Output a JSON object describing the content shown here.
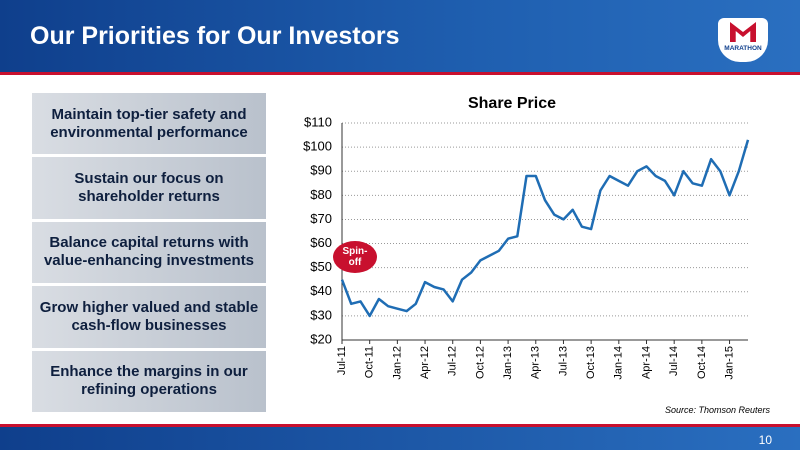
{
  "header": {
    "title": "Our Priorities for Our Investors",
    "logo": "MARATHON"
  },
  "priorities": [
    "Maintain top-tier safety and environmental performance",
    "Sustain our focus on shareholder returns",
    "Balance capital returns with value-enhancing investments",
    "Grow higher valued and stable cash-flow businesses",
    "Enhance the margins in our refining operations"
  ],
  "chart_data": {
    "type": "line",
    "title": "Share Price",
    "categories": [
      "Jul-11",
      null,
      null,
      "Oct-11",
      null,
      null,
      "Jan-12",
      null,
      null,
      "Apr-12",
      null,
      null,
      "Jul-12",
      null,
      null,
      "Oct-12",
      null,
      null,
      "Jan-13",
      null,
      null,
      "Apr-13",
      null,
      null,
      "Jul-13",
      null,
      null,
      "Oct-13",
      null,
      null,
      "Jan-14",
      null,
      null,
      "Apr-14",
      null,
      null,
      "Jul-14",
      null,
      null,
      "Oct-14",
      null,
      null,
      "Jan-15",
      null,
      null
    ],
    "series": [
      {
        "name": "Share Price",
        "color": "#1f6db4",
        "values": [
          45,
          35,
          36,
          30,
          37,
          34,
          33,
          32,
          35,
          44,
          42,
          41,
          36,
          45,
          48,
          53,
          55,
          57,
          62,
          63,
          88,
          88,
          78,
          72,
          70,
          74,
          67,
          66,
          82,
          88,
          86,
          84,
          90,
          92,
          88,
          86,
          80,
          90,
          85,
          84,
          95,
          90,
          80,
          90,
          103
        ]
      }
    ],
    "ylim": [
      20,
      110
    ],
    "yticks": [
      {
        "value": 20,
        "label": "$20"
      },
      {
        "value": 30,
        "label": "$30"
      },
      {
        "value": 40,
        "label": "$40"
      },
      {
        "value": 50,
        "label": "$50"
      },
      {
        "value": 60,
        "label": "$60"
      },
      {
        "value": 70,
        "label": "$70"
      },
      {
        "value": 80,
        "label": "$80"
      },
      {
        "value": 90,
        "label": "$90"
      },
      {
        "value": 100,
        "label": "$100"
      },
      {
        "value": 110,
        "label": "$110"
      }
    ],
    "grid": true,
    "annotation": "Spin-off",
    "source": "Source:  Thomson Reuters"
  },
  "footer": {
    "page": "10"
  }
}
